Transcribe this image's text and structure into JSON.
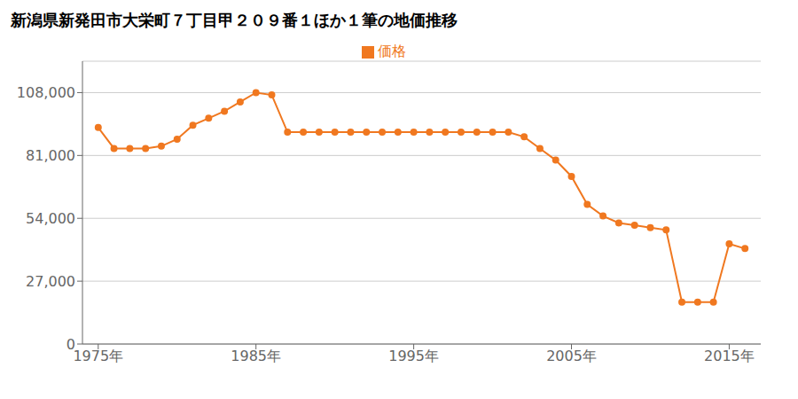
{
  "chart_data": {
    "type": "line",
    "title": "新潟県新発田市大栄町７丁目甲２０９番１ほか１筆の地価推移",
    "x": [
      1975,
      1976,
      1977,
      1978,
      1979,
      1980,
      1981,
      1982,
      1983,
      1984,
      1985,
      1986,
      1987,
      1988,
      1989,
      1990,
      1991,
      1992,
      1993,
      1994,
      1995,
      1996,
      1997,
      1998,
      1999,
      2000,
      2001,
      2002,
      2003,
      2004,
      2005,
      2006,
      2007,
      2008,
      2009,
      2010,
      2011,
      2012,
      2013,
      2014,
      2015,
      2016
    ],
    "series": [
      {
        "name": "価格",
        "color": "#f07820",
        "marker": "circle",
        "values": [
          93000,
          84000,
          84000,
          84000,
          85000,
          88000,
          94000,
          97000,
          100000,
          104000,
          108000,
          107000,
          91000,
          91000,
          91000,
          91000,
          91000,
          91000,
          91000,
          91000,
          91000,
          91000,
          91000,
          91000,
          91000,
          91000,
          91000,
          89000,
          84000,
          79000,
          72000,
          60000,
          55000,
          52000,
          51000,
          50000,
          49000,
          18000,
          18000,
          18000,
          43000,
          41000
        ]
      }
    ],
    "xlim": [
      1974,
      2017
    ],
    "xticks": [
      {
        "value": 1975,
        "label": "1975年"
      },
      {
        "value": 1985,
        "label": "1985年"
      },
      {
        "value": 1995,
        "label": "1995年"
      },
      {
        "value": 2005,
        "label": "2005年"
      },
      {
        "value": 2015,
        "label": "2015年"
      }
    ],
    "ylim": [
      0,
      121500
    ],
    "yticks": [
      0,
      {
        "value": 27000,
        "label": "27,000"
      },
      {
        "value": 54000,
        "label": "54,000"
      },
      {
        "value": 81000,
        "label": "81,000"
      },
      {
        "value": 108000,
        "label": "108,000"
      }
    ],
    "grid": "y",
    "legend": "top"
  }
}
